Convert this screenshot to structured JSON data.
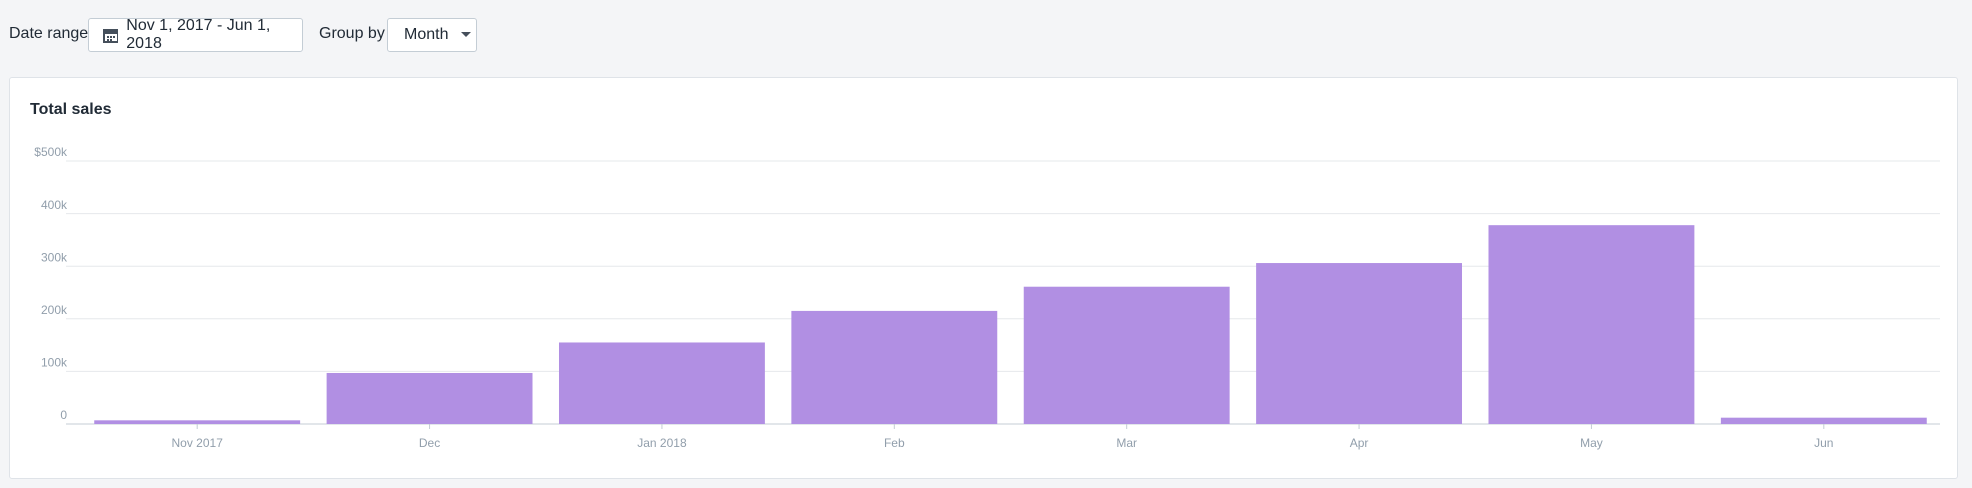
{
  "toolbar": {
    "date_label": "Date range",
    "date_value": "Nov 1, 2017 - Jun 1, 2018",
    "group_label": "Group by",
    "group_value": "Month"
  },
  "chart_data": {
    "type": "bar",
    "title": "Total sales",
    "categories": [
      "Nov 2017",
      "Dec",
      "Jan 2018",
      "Feb",
      "Mar",
      "Apr",
      "May",
      "Jun"
    ],
    "values": [
      7000,
      97000,
      155000,
      215000,
      261000,
      306000,
      378000,
      12000
    ],
    "color": "#b18fe3",
    "ylim": [
      0,
      500000
    ],
    "yticks": [
      0,
      {
        "value": 100000,
        "label": "100k"
      },
      {
        "value": 200000,
        "label": "200k"
      },
      {
        "value": 300000,
        "label": "300k"
      },
      {
        "value": 400000,
        "label": "400k"
      },
      {
        "value": 500000,
        "label": "$500k"
      }
    ],
    "grid": true
  }
}
